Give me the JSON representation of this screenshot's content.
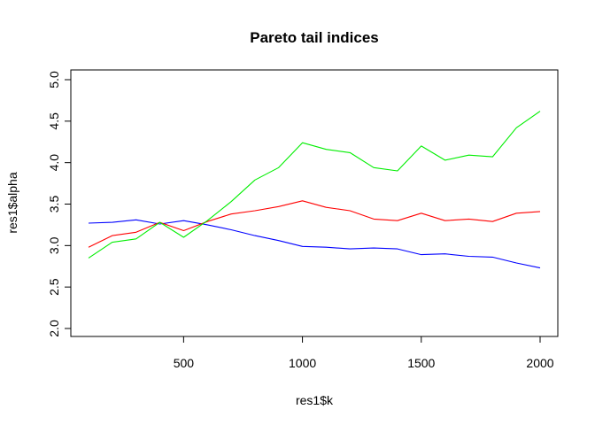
{
  "chart_data": {
    "type": "line",
    "title": "Pareto tail indices",
    "xlabel": "res1$k",
    "ylabel": "res1$alpha",
    "xlim": [
      100,
      2000
    ],
    "ylim": [
      2.0,
      5.0
    ],
    "x_ticks": [
      500,
      1000,
      1500,
      2000
    ],
    "y_ticks": [
      2.0,
      2.5,
      3.0,
      3.5,
      4.0,
      4.5,
      5.0
    ],
    "x_tick_labels": [
      "500",
      "1000",
      "1500",
      "2000"
    ],
    "y_tick_labels": [
      "2.0",
      "2.5",
      "3.0",
      "3.5",
      "4.0",
      "4.5",
      "5.0"
    ],
    "grid": false,
    "x": [
      100,
      200,
      300,
      400,
      500,
      600,
      700,
      800,
      900,
      1000,
      1100,
      1200,
      1300,
      1400,
      1500,
      1600,
      1700,
      1800,
      1900,
      2000
    ],
    "series": [
      {
        "color": "#0000ff",
        "values": [
          3.27,
          3.28,
          3.31,
          3.26,
          3.3,
          3.25,
          3.19,
          3.12,
          3.06,
          2.99,
          2.98,
          2.96,
          2.97,
          2.96,
          2.89,
          2.9,
          2.87,
          2.86,
          2.79,
          2.73
        ]
      },
      {
        "color": "#ff0000",
        "values": [
          2.98,
          3.12,
          3.16,
          3.28,
          3.18,
          3.29,
          3.38,
          3.42,
          3.47,
          3.54,
          3.46,
          3.42,
          3.32,
          3.3,
          3.39,
          3.3,
          3.32,
          3.29,
          3.39,
          3.41
        ]
      },
      {
        "color": "#00ee00",
        "values": [
          2.85,
          3.04,
          3.08,
          3.28,
          3.1,
          3.3,
          3.53,
          3.79,
          3.94,
          4.24,
          4.16,
          4.12,
          3.94,
          3.9,
          4.2,
          4.03,
          4.09,
          4.07,
          4.42,
          4.62
        ]
      }
    ]
  }
}
